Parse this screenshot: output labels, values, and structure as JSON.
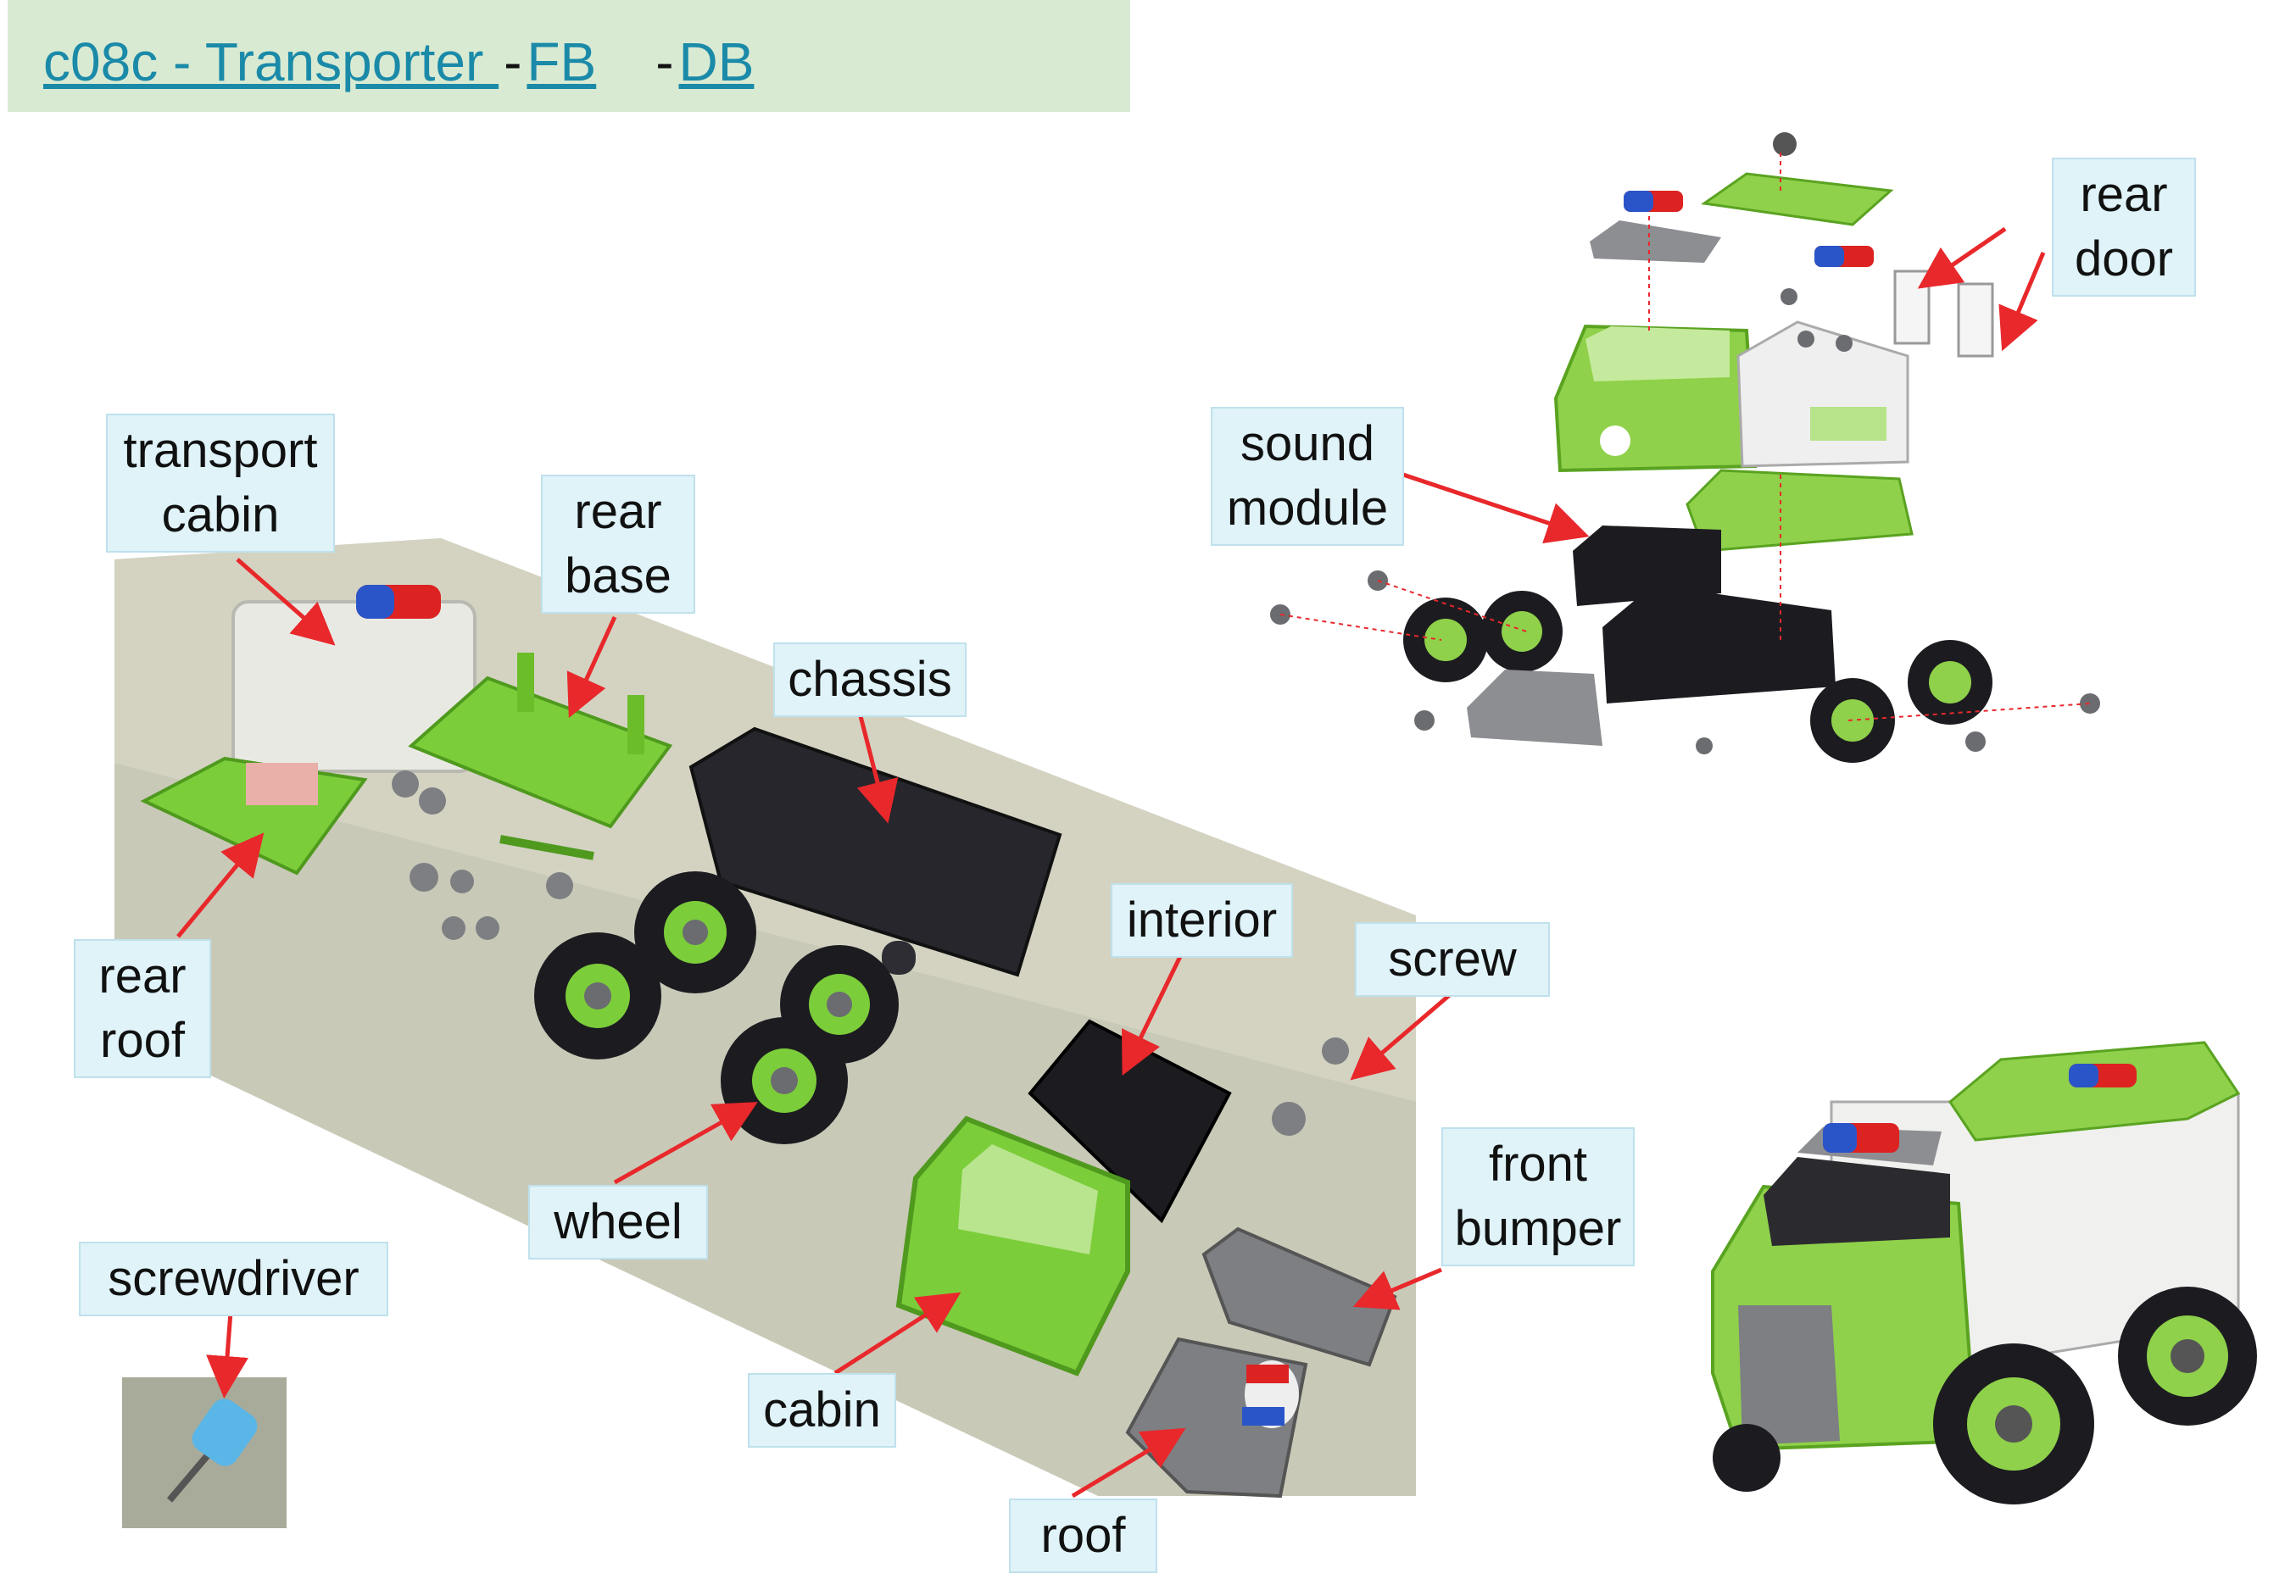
{
  "header": {
    "title_link": "c08c - Transporter  ",
    "separator1": "-",
    "fb_link": "FB",
    "separator2": "-",
    "db_link": "DB"
  },
  "labels": {
    "transport_cabin": "transport\ncabin",
    "rear_base": "rear\nbase",
    "chassis": "chassis",
    "rear_roof": "rear\nroof",
    "interior": "interior",
    "screw": "screw",
    "wheel": "wheel",
    "front_bumper": "front\nbumper",
    "cabin": "cabin",
    "roof": "roof",
    "screwdriver": "screwdriver",
    "sound_module": "sound\nmodule",
    "rear_door": "rear\ndoor"
  },
  "colors": {
    "arrow": "#e8282b",
    "label_bg": "#dff3f9",
    "header_bg": "#d9ead3",
    "link": "#1a8aa8",
    "toy_green": "#7ccd3a",
    "toy_dark": "#1e1e22",
    "toy_gray": "#7d7f82"
  }
}
